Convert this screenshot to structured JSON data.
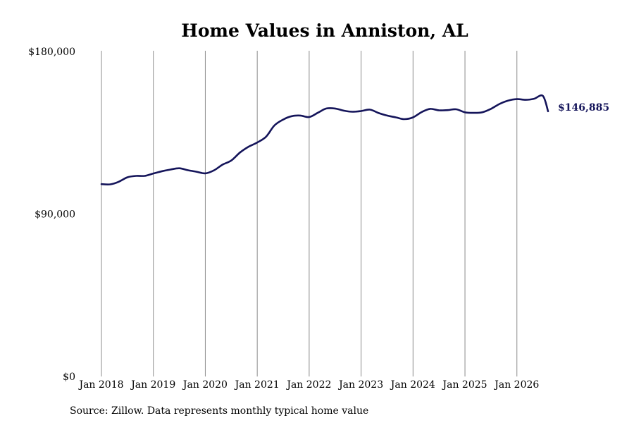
{
  "chart_data": {
    "type": "line",
    "title": "Home Values in Anniston, AL",
    "xlabel": "",
    "ylabel": "",
    "ylim": [
      0,
      180000
    ],
    "yticks": [
      {
        "value": 0,
        "label": "$0"
      },
      {
        "value": 90000,
        "label": "$90,000"
      },
      {
        "value": 180000,
        "label": "$180,000"
      }
    ],
    "xticks": [
      {
        "value": 2018.0,
        "label": "Jan 2018"
      },
      {
        "value": 2019.0,
        "label": "Jan 2019"
      },
      {
        "value": 2020.0,
        "label": "Jan 2020"
      },
      {
        "value": 2021.0,
        "label": "Jan 2021"
      },
      {
        "value": 2022.0,
        "label": "Jan 2022"
      },
      {
        "value": 2023.0,
        "label": "Jan 2023"
      },
      {
        "value": 2024.0,
        "label": "Jan 2024"
      },
      {
        "value": 2025.0,
        "label": "Jan 2025"
      },
      {
        "value": 2026.0,
        "label": "Jan 2026"
      }
    ],
    "xlim": [
      2018.0,
      2026.6
    ],
    "grid": "vertical",
    "series_color": "#14145a",
    "end_label": "$146,885",
    "x": [
      2018.0,
      2018.17,
      2018.33,
      2018.5,
      2018.67,
      2018.83,
      2019.0,
      2019.17,
      2019.33,
      2019.5,
      2019.67,
      2019.83,
      2020.0,
      2020.17,
      2020.33,
      2020.5,
      2020.67,
      2020.83,
      2021.0,
      2021.17,
      2021.33,
      2021.5,
      2021.67,
      2021.83,
      2022.0,
      2022.17,
      2022.33,
      2022.5,
      2022.67,
      2022.83,
      2023.0,
      2023.17,
      2023.33,
      2023.5,
      2023.67,
      2023.83,
      2024.0,
      2024.17,
      2024.33,
      2024.5,
      2024.67,
      2024.83,
      2025.0,
      2025.17,
      2025.33,
      2025.5,
      2025.67,
      2025.83,
      2026.0,
      2026.17,
      2026.33,
      2026.5,
      2026.6
    ],
    "values": [
      106500,
      106400,
      107800,
      110300,
      111100,
      111100,
      112400,
      113700,
      114600,
      115300,
      114200,
      113400,
      112500,
      114200,
      117300,
      119600,
      124100,
      127200,
      129600,
      132800,
      139000,
      142300,
      144200,
      144500,
      143700,
      146100,
      148400,
      148400,
      147200,
      146600,
      147000,
      147800,
      146000,
      144500,
      143500,
      142500,
      143500,
      146500,
      148200,
      147400,
      147500,
      148000,
      146300,
      146000,
      146300,
      148200,
      151000,
      152800,
      153600,
      153200,
      153800,
      155400,
      146885
    ]
  },
  "source": "Source: Zillow. Data represents monthly typical home value"
}
